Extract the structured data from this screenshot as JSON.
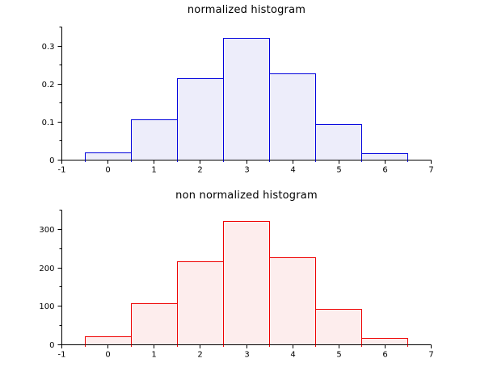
{
  "page": {
    "background": "#ffffff",
    "axis_color": "#000000",
    "tick_label_color": "#000000"
  },
  "chart_data": [
    {
      "type": "bar",
      "variant": "histogram",
      "title": "normalized histogram",
      "bin_edges": [
        -0.5,
        0.5,
        1.5,
        2.5,
        3.5,
        4.5,
        5.5,
        6.5
      ],
      "values": [
        0.02,
        0.106,
        0.215,
        0.32,
        0.227,
        0.093,
        0.016
      ],
      "xlim": [
        -1,
        7
      ],
      "ylim": [
        0,
        0.35
      ],
      "x_ticks": [
        {
          "v": -1,
          "label": "-1"
        },
        {
          "v": 0,
          "label": "0"
        },
        {
          "v": 1,
          "label": "1"
        },
        {
          "v": 2,
          "label": "2"
        },
        {
          "v": 3,
          "label": "3"
        },
        {
          "v": 4,
          "label": "4"
        },
        {
          "v": 5,
          "label": "5"
        },
        {
          "v": 6,
          "label": "6"
        },
        {
          "v": 7,
          "label": "7"
        }
      ],
      "y_ticks": [
        {
          "v": 0,
          "label": "0"
        },
        {
          "v": 0.1,
          "label": "0.1"
        },
        {
          "v": 0.2,
          "label": "0.2"
        },
        {
          "v": 0.3,
          "label": "0.3"
        }
      ],
      "y_minor_ticks": [
        0.05,
        0.15,
        0.25,
        0.35
      ],
      "grid": false,
      "legend": null,
      "bar_fill": "#EDEDFA",
      "bar_edge": "#0000DD"
    },
    {
      "type": "bar",
      "variant": "histogram",
      "title": "non normalized histogram",
      "bin_edges": [
        -0.5,
        0.5,
        1.5,
        2.5,
        3.5,
        4.5,
        5.5,
        6.5
      ],
      "values": [
        20,
        106,
        215,
        320,
        227,
        93,
        16
      ],
      "xlim": [
        -1,
        7
      ],
      "ylim": [
        0,
        350
      ],
      "x_ticks": [
        {
          "v": -1,
          "label": "-1"
        },
        {
          "v": 0,
          "label": "0"
        },
        {
          "v": 1,
          "label": "1"
        },
        {
          "v": 2,
          "label": "2"
        },
        {
          "v": 3,
          "label": "3"
        },
        {
          "v": 4,
          "label": "4"
        },
        {
          "v": 5,
          "label": "5"
        },
        {
          "v": 6,
          "label": "6"
        },
        {
          "v": 7,
          "label": "7"
        }
      ],
      "y_ticks": [
        {
          "v": 0,
          "label": "0"
        },
        {
          "v": 100,
          "label": "100"
        },
        {
          "v": 200,
          "label": "200"
        },
        {
          "v": 300,
          "label": "300"
        }
      ],
      "y_minor_ticks": [
        50,
        150,
        250,
        350
      ],
      "grid": false,
      "legend": null,
      "bar_fill": "#FDEDED",
      "bar_edge": "#EE0000"
    }
  ]
}
